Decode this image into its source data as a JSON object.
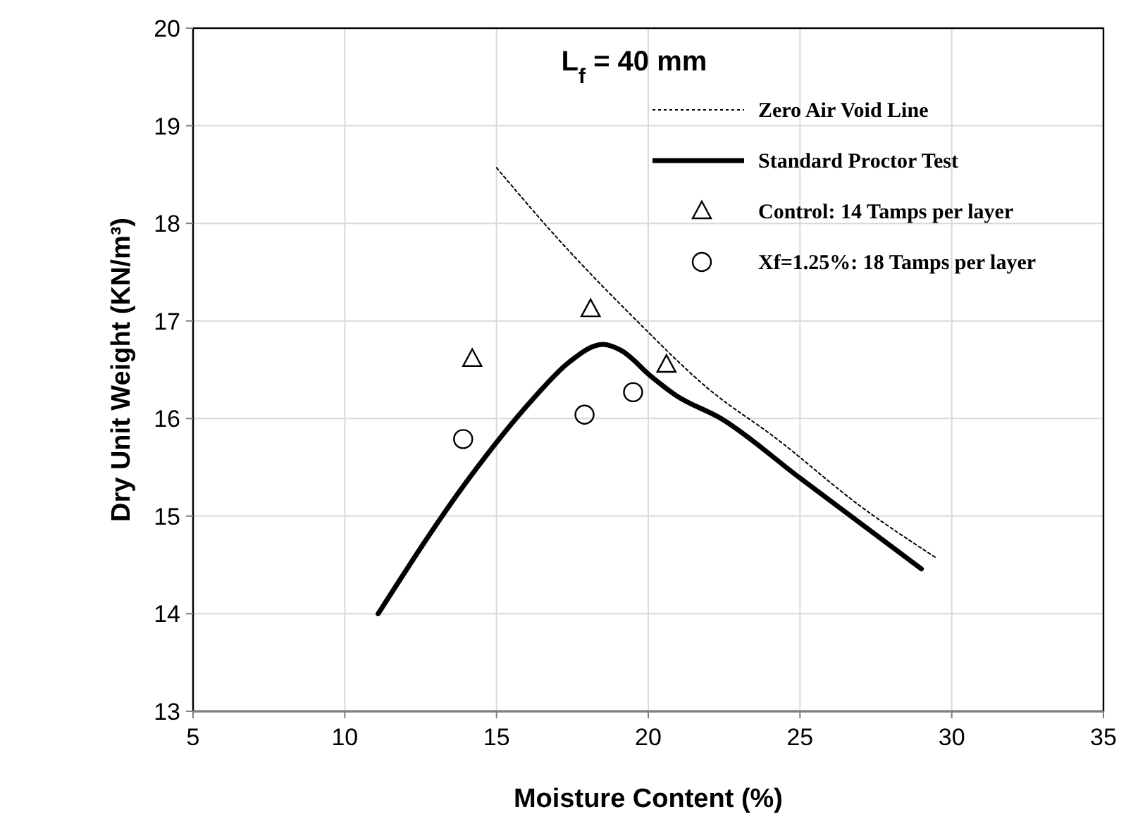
{
  "chart_data": {
    "type": "line",
    "title": "L$_{f}$ = 40 mm",
    "xlabel": "Moisture Content (%)",
    "ylabel": "Dry Unit Weight (KN/m³)",
    "xlim": [
      5,
      35
    ],
    "xticks": [
      5,
      10,
      15,
      20,
      25,
      30,
      35
    ],
    "ylim": [
      13,
      20
    ],
    "yticks": [
      13,
      14,
      15,
      16,
      17,
      18,
      19,
      20
    ],
    "grid": true,
    "legend": "top right",
    "series": [
      {
        "name": "Zero Air Void Line",
        "line_style": "dotted",
        "marker": "none",
        "color": "#000000",
        "x": [
          15,
          17,
          19.5,
          22,
          24.2,
          27,
          29.5
        ],
        "values": [
          18.57,
          17.85,
          17.04,
          16.3,
          15.8,
          15.1,
          14.57
        ]
      },
      {
        "name": "Standard Proctor Test",
        "line_style": "solid",
        "marker": "none",
        "color": "#000000",
        "x": [
          11.1,
          14.1,
          16.2,
          17.4,
          18.5,
          19.1,
          20.1,
          20.9,
          22.4,
          25,
          29
        ],
        "values": [
          14.0,
          15.39,
          16.2,
          16.58,
          16.76,
          16.7,
          16.43,
          16.24,
          16.0,
          15.39,
          14.46
        ]
      },
      {
        "name": "Control: 14 Tamps per layer",
        "type": "scatter",
        "marker": "triangle",
        "color": "#000000",
        "x": [
          14.2,
          18.1,
          20.6
        ],
        "values": [
          16.61,
          17.12,
          16.55
        ]
      },
      {
        "name": "Xf=1.25%: 18 Tamps per layer",
        "type": "scatter",
        "marker": "circle",
        "color": "#000000",
        "x": [
          13.9,
          17.9,
          19.5
        ],
        "values": [
          15.79,
          16.04,
          16.27
        ]
      }
    ]
  }
}
